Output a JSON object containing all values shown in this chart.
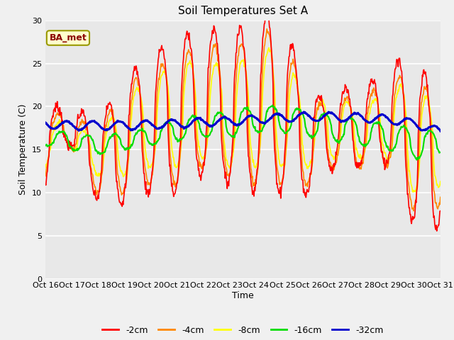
{
  "title": "Soil Temperatures Set A",
  "xlabel": "Time",
  "ylabel": "Soil Temperature (C)",
  "annotation": "BA_met",
  "ylim": [
    0,
    30
  ],
  "xlim": [
    0,
    15
  ],
  "fig_bg": "#f0f0f0",
  "ax_bg": "#e8e8e8",
  "grid_color": "#ffffff",
  "x_tick_labels": [
    "Oct 16",
    "Oct 17",
    "Oct 18",
    "Oct 19",
    "Oct 20",
    "Oct 21",
    "Oct 22",
    "Oct 23",
    "Oct 24",
    "Oct 25",
    "Oct 26",
    "Oct 27",
    "Oct 28",
    "Oct 29",
    "Oct 30",
    "Oct 31"
  ],
  "series": {
    "-2cm": {
      "color": "#ff0000",
      "lw": 1.2
    },
    "-4cm": {
      "color": "#ff8800",
      "lw": 1.2
    },
    "-8cm": {
      "color": "#ffff00",
      "lw": 1.2
    },
    "-16cm": {
      "color": "#00dd00",
      "lw": 1.5
    },
    "-32cm": {
      "color": "#0000cc",
      "lw": 2.2
    }
  }
}
